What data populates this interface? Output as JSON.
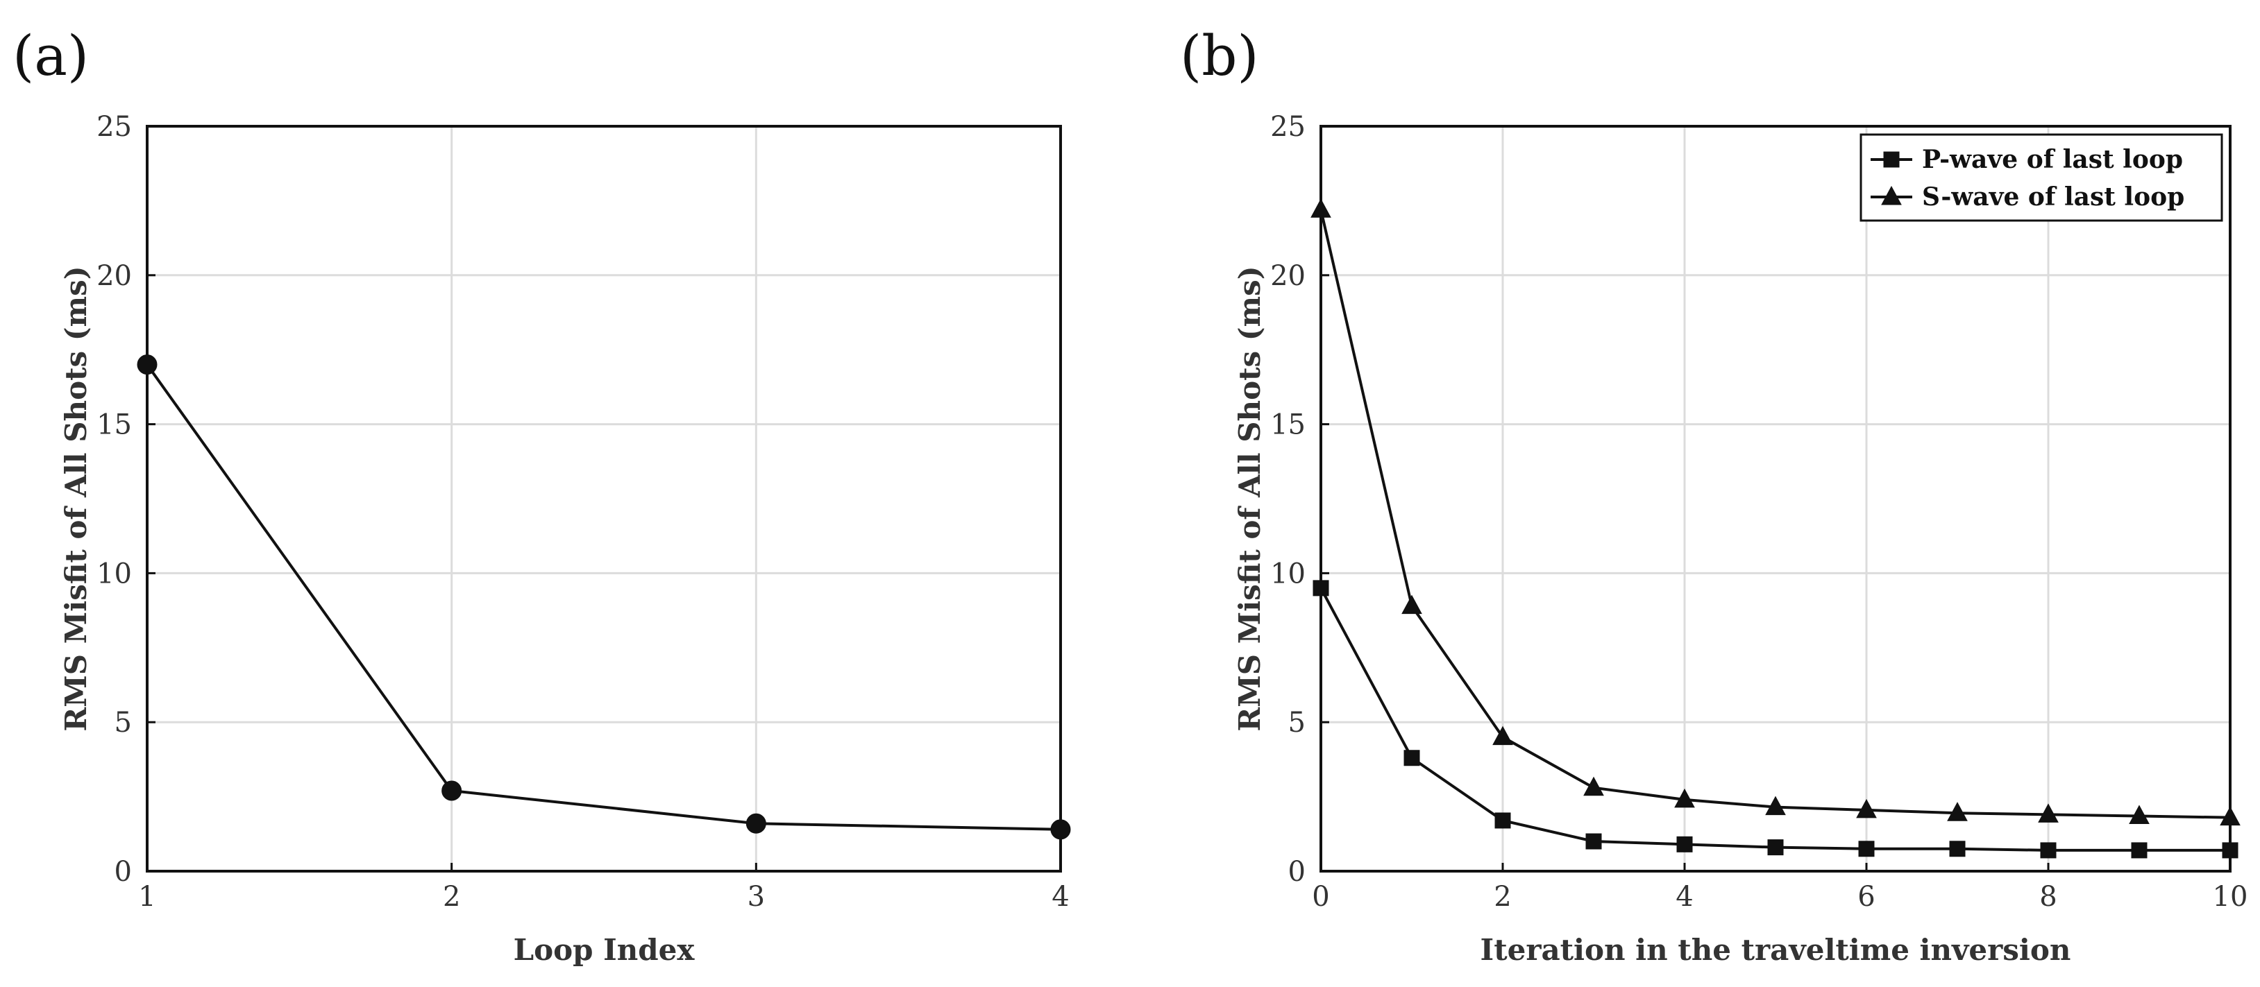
{
  "chart_data": [
    {
      "panel": "(a)",
      "type": "line",
      "title": "",
      "xlabel": "Loop Index",
      "ylabel": "RMS Misfit of All Shots (ms)",
      "xlim": [
        1,
        4
      ],
      "ylim": [
        0,
        25
      ],
      "xticks": [
        "1",
        "2",
        "3",
        "4"
      ],
      "yticks": [
        "0",
        "5",
        "10",
        "15",
        "20",
        "25"
      ],
      "grid": true,
      "legend": null,
      "series": [
        {
          "name": "",
          "marker": "circle",
          "x": [
            1,
            2,
            3,
            4
          ],
          "values": [
            17.0,
            2.7,
            1.6,
            1.4
          ]
        }
      ]
    },
    {
      "panel": "(b)",
      "type": "line",
      "title": "",
      "xlabel": "Iteration in the traveltime inversion",
      "ylabel": "RMS Misfit of All Shots (ms)",
      "xlim": [
        0,
        10
      ],
      "ylim": [
        0,
        25
      ],
      "xticks": [
        "0",
        "2",
        "4",
        "6",
        "8",
        "10"
      ],
      "yticks": [
        "0",
        "5",
        "10",
        "15",
        "20",
        "25"
      ],
      "grid": true,
      "legend": "top-right",
      "series": [
        {
          "name": "P-wave of last loop",
          "marker": "square",
          "x": [
            0,
            1,
            2,
            3,
            4,
            5,
            6,
            7,
            8,
            9,
            10
          ],
          "values": [
            9.5,
            3.8,
            1.7,
            1.0,
            0.9,
            0.8,
            0.75,
            0.75,
            0.7,
            0.7,
            0.7
          ]
        },
        {
          "name": "S-wave of last loop",
          "marker": "triangle",
          "x": [
            0,
            1,
            2,
            3,
            4,
            5,
            6,
            7,
            8,
            9,
            10
          ],
          "values": [
            22.2,
            8.9,
            4.5,
            2.8,
            2.4,
            2.15,
            2.05,
            1.95,
            1.9,
            1.85,
            1.8
          ]
        }
      ]
    }
  ]
}
